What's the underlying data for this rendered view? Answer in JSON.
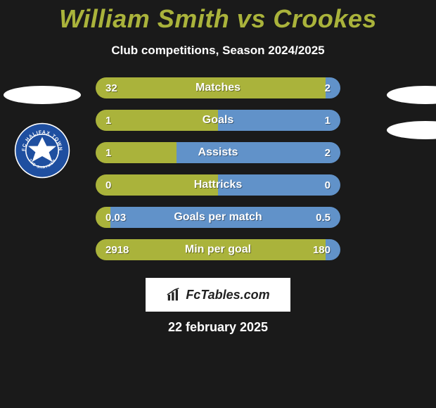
{
  "title": "William Smith vs Crookes",
  "subtitle": "Club competitions, Season 2024/2025",
  "colors": {
    "left_team": "#aab33b",
    "right_team": "#6192c9",
    "title_color": "#aab33b",
    "background": "#1a1a1a",
    "ellipse": "#ffffff"
  },
  "badge": {
    "name": "FC Halifax Town",
    "outer": "#ffffff",
    "ring": "#1f4fa0",
    "inner": "#ffffff",
    "accent": "#1f4fa0"
  },
  "bars": [
    {
      "label": "Matches",
      "left": "32",
      "right": "2",
      "left_pct": 94,
      "right_pct": 6
    },
    {
      "label": "Goals",
      "left": "1",
      "right": "1",
      "left_pct": 50,
      "right_pct": 50
    },
    {
      "label": "Assists",
      "left": "1",
      "right": "2",
      "left_pct": 33,
      "right_pct": 67
    },
    {
      "label": "Hattricks",
      "left": "0",
      "right": "0",
      "left_pct": 50,
      "right_pct": 50
    },
    {
      "label": "Goals per match",
      "left": "0.03",
      "right": "0.5",
      "left_pct": 6,
      "right_pct": 94
    },
    {
      "label": "Min per goal",
      "left": "2918",
      "right": "180",
      "left_pct": 94,
      "right_pct": 6
    }
  ],
  "logo_text": "FcTables.com",
  "date": "22 february 2025"
}
